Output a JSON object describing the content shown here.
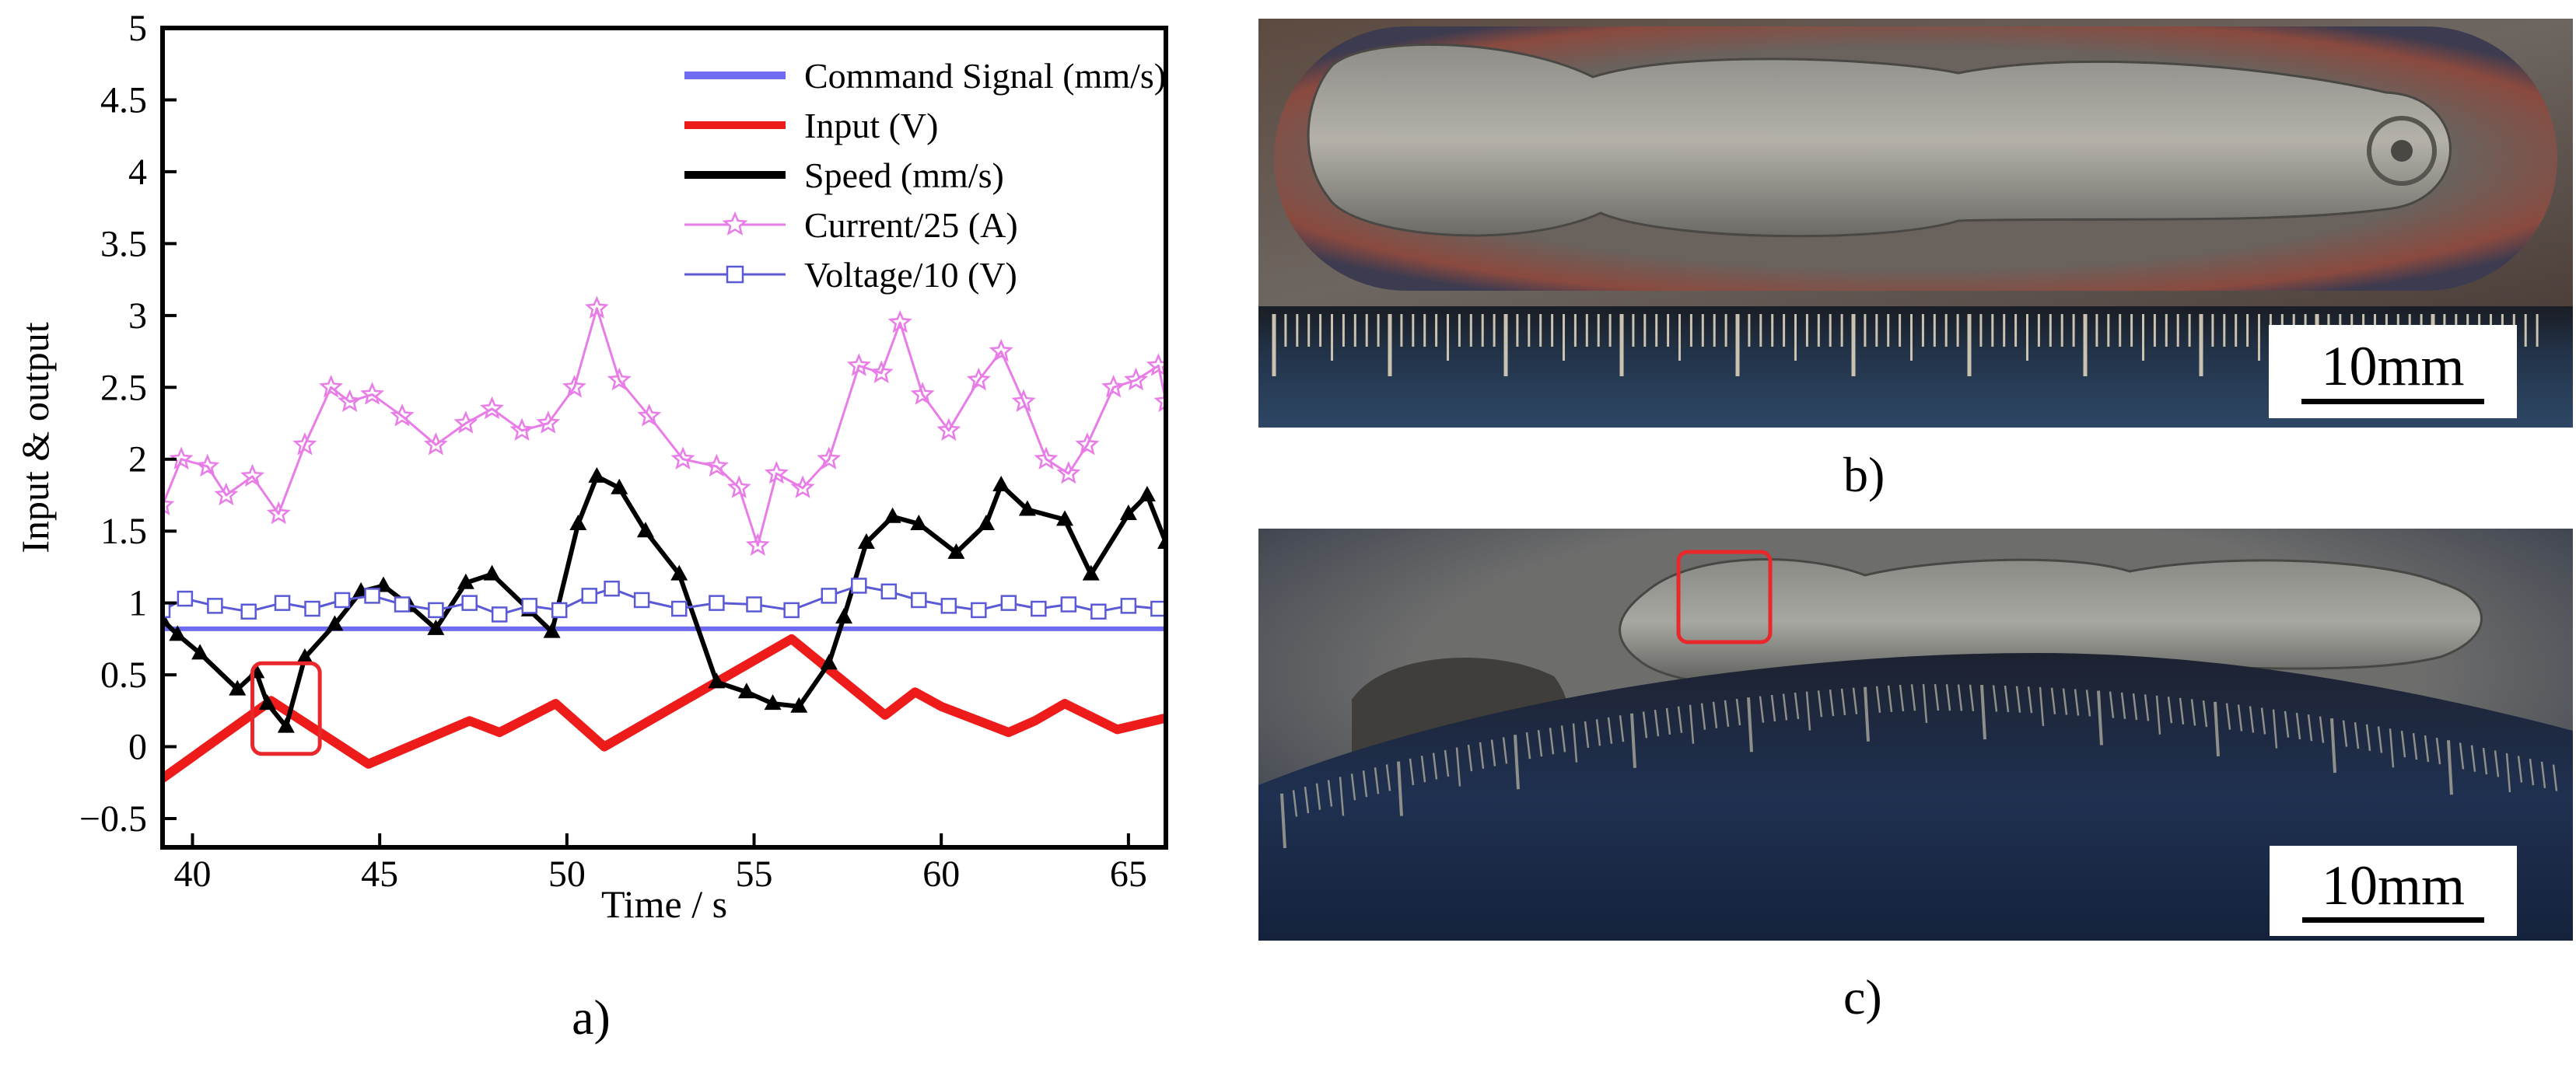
{
  "chart_data": {
    "type": "line",
    "caption": "a)",
    "xlabel": "Time / s",
    "ylabel": "Input & output",
    "xlim": [
      39.2,
      66
    ],
    "ylim": [
      -0.7,
      5
    ],
    "xticks": [
      "40",
      "45",
      "50",
      "55",
      "60",
      "65"
    ],
    "xtick_values": [
      40,
      45,
      50,
      55,
      60,
      65
    ],
    "yticks": [
      "−0.5",
      "0",
      "0.5",
      "1",
      "1.5",
      "2",
      "2.5",
      "3",
      "3.5",
      "4",
      "4.5",
      "5"
    ],
    "ytick_values": [
      -0.5,
      0,
      0.5,
      1,
      1.5,
      2,
      2.5,
      3,
      3.5,
      4,
      4.5,
      5
    ],
    "legend": {
      "position": "top-right"
    },
    "highlight": {
      "x_range": [
        41.6,
        43.4
      ],
      "y_range": [
        -0.05,
        0.58
      ],
      "color": "#e8282a"
    },
    "series": [
      {
        "name": "Command Signal (mm/s)",
        "color": "#6f6cf2",
        "marker": "none",
        "x": [
          39.2,
          66
        ],
        "y": [
          0.82,
          0.82
        ]
      },
      {
        "name": "Input (V)",
        "color": "#ee1b1b",
        "marker": "none",
        "x": [
          39.2,
          42.1,
          44.7,
          47.4,
          48.2,
          49.7,
          51.0,
          56.0,
          58.5,
          59.3,
          60.0,
          61.8,
          62.5,
          63.3,
          64.7,
          66.0
        ],
        "y": [
          -0.22,
          0.32,
          -0.12,
          0.18,
          0.1,
          0.3,
          0.0,
          0.75,
          0.22,
          0.38,
          0.28,
          0.1,
          0.18,
          0.3,
          0.12,
          0.2
        ]
      },
      {
        "name": "Speed (mm/s)",
        "color": "#000000",
        "marker": "triangle",
        "x": [
          39.2,
          39.6,
          40.2,
          41.2,
          41.7,
          42.0,
          42.5,
          43.0,
          43.8,
          44.5,
          45.1,
          45.8,
          46.5,
          47.3,
          48.0,
          49.0,
          49.6,
          50.3,
          50.8,
          51.4,
          52.1,
          53.0,
          54.0,
          54.8,
          55.5,
          56.2,
          57.0,
          57.4,
          58.0,
          58.7,
          59.4,
          60.4,
          61.2,
          61.6,
          62.3,
          63.3,
          64.0,
          65.0,
          65.5,
          66.0
        ],
        "y": [
          0.88,
          0.78,
          0.65,
          0.4,
          0.52,
          0.3,
          0.14,
          0.62,
          0.85,
          1.08,
          1.12,
          0.98,
          0.82,
          1.14,
          1.2,
          0.95,
          0.8,
          1.55,
          1.88,
          1.8,
          1.5,
          1.2,
          0.45,
          0.38,
          0.3,
          0.28,
          0.58,
          0.9,
          1.42,
          1.6,
          1.55,
          1.35,
          1.55,
          1.82,
          1.65,
          1.58,
          1.2,
          1.62,
          1.75,
          1.42
        ]
      },
      {
        "name": "Current/25 (A)",
        "color": "#e87de8",
        "marker": "star",
        "x": [
          39.2,
          39.7,
          40.4,
          40.9,
          41.6,
          42.3,
          43.0,
          43.7,
          44.2,
          44.8,
          45.6,
          46.5,
          47.3,
          48.0,
          48.8,
          49.5,
          50.2,
          50.8,
          51.4,
          52.2,
          53.1,
          54.0,
          54.6,
          55.1,
          55.6,
          56.3,
          57.0,
          57.8,
          58.4,
          58.9,
          59.5,
          60.2,
          61.0,
          61.6,
          62.2,
          62.8,
          63.4,
          63.9,
          64.6,
          65.2,
          65.8,
          66.0
        ],
        "y": [
          1.68,
          2.0,
          1.95,
          1.75,
          1.88,
          1.62,
          2.1,
          2.5,
          2.4,
          2.45,
          2.3,
          2.1,
          2.25,
          2.35,
          2.2,
          2.25,
          2.5,
          3.05,
          2.55,
          2.3,
          2.0,
          1.95,
          1.8,
          1.4,
          1.9,
          1.8,
          2.0,
          2.65,
          2.6,
          2.95,
          2.45,
          2.2,
          2.55,
          2.75,
          2.4,
          2.0,
          1.9,
          2.1,
          2.5,
          2.55,
          2.65,
          2.4
        ]
      },
      {
        "name": "Voltage/10 (V)",
        "color": "#5a5ad6",
        "marker": "square",
        "x": [
          39.2,
          39.8,
          40.6,
          41.5,
          42.4,
          43.2,
          44.0,
          44.8,
          45.6,
          46.5,
          47.4,
          48.2,
          49.0,
          49.8,
          50.6,
          51.2,
          52.0,
          53.0,
          54.0,
          55.0,
          56.0,
          57.0,
          57.8,
          58.6,
          59.4,
          60.2,
          61.0,
          61.8,
          62.6,
          63.4,
          64.2,
          65.0,
          65.8
        ],
        "y": [
          0.95,
          1.03,
          0.98,
          0.94,
          1.0,
          0.96,
          1.02,
          1.05,
          0.99,
          0.95,
          1.0,
          0.92,
          0.98,
          0.95,
          1.05,
          1.1,
          1.02,
          0.96,
          1.0,
          0.99,
          0.95,
          1.05,
          1.12,
          1.08,
          1.02,
          0.98,
          0.95,
          1.0,
          0.96,
          0.99,
          0.94,
          0.98,
          0.96
        ]
      }
    ]
  },
  "photo_b": {
    "caption": "b)",
    "scale_label": "10mm"
  },
  "photo_c": {
    "caption": "c)",
    "scale_label": "10mm",
    "highlight_color": "#e8282a"
  }
}
